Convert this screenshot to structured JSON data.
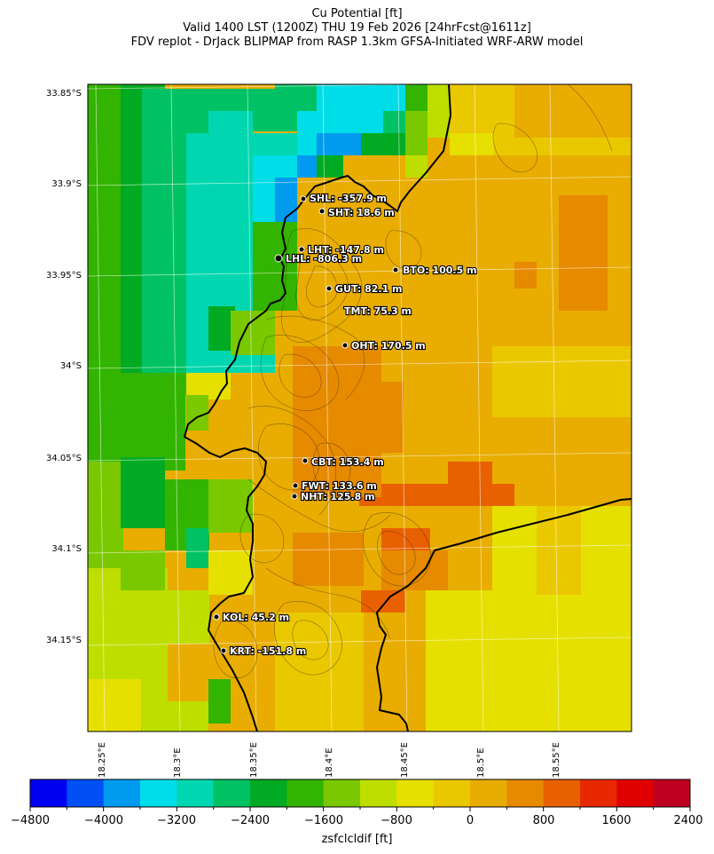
{
  "title": {
    "line1": "Cu Potential [ft]",
    "line2": "Valid 1400 LST (1200Z) THU 19 Feb 2026 [24hrFcst@1611z]",
    "line3": "FDV replot - DrJack BLIPMAP from RASP 1.3km GFSA-Initiated WRF-ARW model"
  },
  "axes": {
    "lat_labels": [
      "33.85°S",
      "33.9°S",
      "33.95°S",
      "34°S",
      "34.05°S",
      "34.1°S",
      "34.15°S"
    ],
    "lon_labels": [
      "18.25°E",
      "18.3°E",
      "18.35°E",
      "18.4°E",
      "18.45°E",
      "18.5°E",
      "18.55°E"
    ]
  },
  "colorbar": {
    "label": "zsfclcldif [ft]",
    "tick_labels": [
      "−4800",
      "−4000",
      "−3200",
      "−2400",
      "−1600",
      "−800",
      "0",
      "800",
      "1600",
      "2400"
    ],
    "colors": [
      "#0000f0",
      "#0050f5",
      "#009bef",
      "#00dde8",
      "#00d7b0",
      "#00c264",
      "#00aa22",
      "#32b400",
      "#7ac800",
      "#bede00",
      "#e6e000",
      "#eac800",
      "#e8ad00",
      "#e68a00",
      "#e86000",
      "#e82800",
      "#e00000",
      "#c00020"
    ]
  },
  "stations": [
    {
      "label": "SHL: -357.9 m"
    },
    {
      "label": "SHT: 18.6 m"
    },
    {
      "label": "LHT: -147.8 m"
    },
    {
      "label": "LHL: -806.3 m"
    },
    {
      "label": "BTO: 100.5 m"
    },
    {
      "label": "GUT: 82.1 m"
    },
    {
      "label": "TMT: 75.3 m"
    },
    {
      "label": "OHT: 170.5 m"
    },
    {
      "label": "CBT: 153.4 m"
    },
    {
      "label": "FWT: 133.6 m"
    },
    {
      "label": "NHT: 125.8 m"
    },
    {
      "label": "KOL: 45.2 m"
    },
    {
      "label": "KRT: -151.8 m"
    }
  ]
}
